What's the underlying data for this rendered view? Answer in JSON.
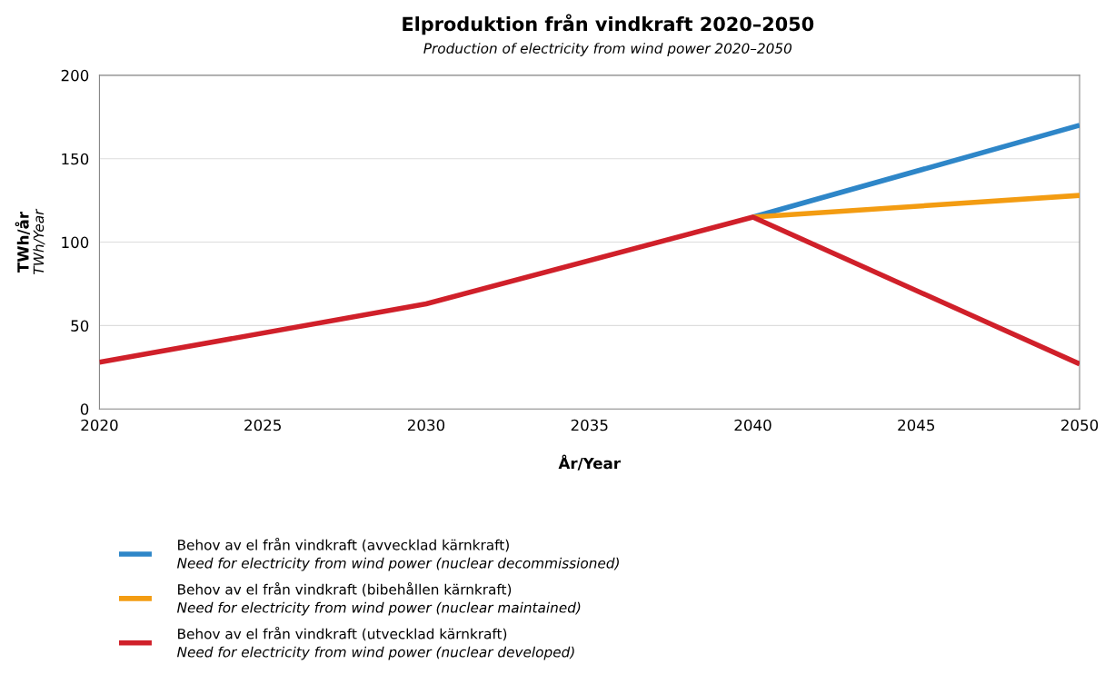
{
  "chart_data": {
    "type": "line",
    "title": "Elproduktion från vindkraft 2020–2050",
    "subtitle": "Production of electricity from wind power 2020–2050",
    "xlabel": "År/Year",
    "ylabel": "TWh/år\nTWh/Year",
    "x": [
      2020,
      2030,
      2040,
      2050
    ],
    "series": [
      {
        "name": "Behov av el från vindkraft (avvecklad kärnkraft)\nNeed for electricity from wind power (nuclear decommissioned)",
        "color": "#2e86c8",
        "values": [
          null,
          null,
          115,
          170
        ]
      },
      {
        "name": "Behov av el från vindkraft (bibehållen kärnkraft)\nNeed for electricity from wind power (nuclear maintained)",
        "color": "#f39c12",
        "values": [
          null,
          null,
          115,
          128
        ]
      },
      {
        "name": "Behov av el från vindkraft (utvecklad kärnkraft)\nNeed for electricity from wind power (nuclear developed)",
        "color": "#d0202a",
        "values": [
          28,
          63,
          115,
          27
        ]
      }
    ],
    "xlim": [
      2020,
      2050
    ],
    "xticks": [
      2020,
      2025,
      2030,
      2035,
      2040,
      2045,
      2050
    ],
    "ylim": [
      0,
      200
    ],
    "yticks": [
      0,
      50,
      100,
      150,
      200
    ],
    "grid": "y",
    "legend": "bottom",
    "marker": "none",
    "line_style": "solid"
  }
}
